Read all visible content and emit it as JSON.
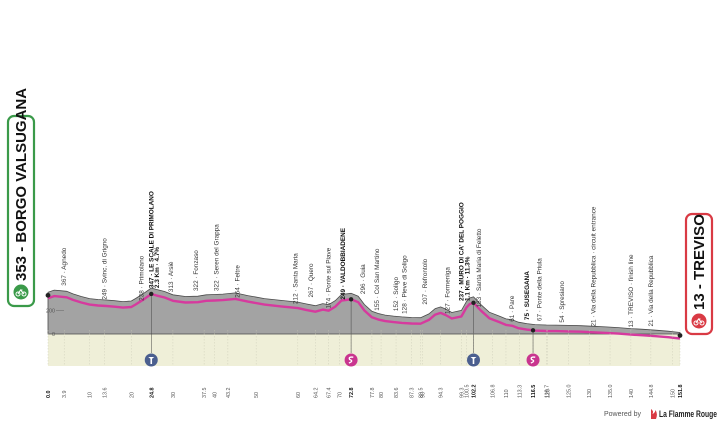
{
  "colors": {
    "profile_fill": "#a3a3a3",
    "profile_edge": "#4a4a4a",
    "route_line": "#d63a9e",
    "start_green": "#3a9a49",
    "finish_red": "#d93a44",
    "sprint_blue": "#4b5f8f",
    "kom_pink": "#c9358f",
    "base_fill": "#efefd8"
  },
  "start_label": "353 - BORGO VALSUGANA",
  "finish_label": "13 - TREVISO",
  "footer": {
    "powered_by": "Powered by",
    "brand": "La Flamme Rouge"
  },
  "chart_data": {
    "type": "area",
    "title": "",
    "xlabel": "",
    "ylabel": "",
    "xlim": [
      0,
      151.8
    ],
    "ylim": [
      0,
      500
    ],
    "altitude_ticks": [
      "200",
      "0"
    ],
    "profile": {
      "km": [
        0,
        1.5,
        3,
        4.5,
        6,
        8,
        10,
        12,
        14,
        16,
        18,
        20,
        21,
        23,
        24.8,
        26,
        28,
        30,
        33,
        36,
        38,
        40,
        42,
        45,
        48,
        52,
        56,
        60,
        62,
        64.2,
        66,
        67.4,
        69,
        70.5,
        72.8,
        74.5,
        76,
        77.8,
        79.5,
        81,
        83,
        85,
        87.3,
        89.5,
        91.5,
        93,
        94.3,
        95.5,
        97,
        99.3,
        100.5,
        101.3,
        102.2,
        104,
        106,
        108.5,
        110,
        111.5,
        113,
        115,
        117,
        119.7,
        122,
        125,
        128,
        131,
        134,
        137,
        140,
        143,
        146,
        149,
        150.5,
        151.8
      ],
      "alt": [
        353,
        372,
        367,
        362,
        340,
        318,
        300,
        292,
        288,
        282,
        275,
        280,
        300,
        345,
        390,
        378,
        360,
        332,
        318,
        320,
        332,
        335,
        338,
        348,
        325,
        300,
        285,
        270,
        255,
        240,
        258,
        248,
        283,
        335,
        345,
        320,
        250,
        192,
        172,
        160,
        152,
        145,
        140,
        138,
        170,
        215,
        230,
        212,
        182,
        200,
        275,
        305,
        315,
        248,
        185,
        150,
        128,
        120,
        100,
        88,
        80,
        76,
        75,
        73,
        70,
        65,
        60,
        54,
        46,
        40,
        32,
        24,
        18,
        13
      ]
    },
    "km_ticks": [
      "0.0",
      "3.9",
      "10",
      "13.6",
      "20",
      "24.8",
      "30",
      "37.5",
      "40",
      "43.2",
      "50",
      "60",
      "64.2",
      "67.4",
      "70",
      "72.8",
      "77.8",
      "80",
      "83.6",
      "87.3",
      "89.5",
      "90",
      "94.3",
      "99.3",
      "100.5",
      "102.2",
      "106.8",
      "110",
      "113.3",
      "116.5",
      "119.7",
      "120",
      "125.0",
      "130",
      "135.0",
      "140",
      "144.8",
      "150",
      "151.8"
    ],
    "km_ticks_bold": [
      "0.0",
      "24.8",
      "72.8",
      "102.2",
      "116.5",
      "151.8"
    ],
    "waypoints": [
      {
        "km": 3.9,
        "alt": 367,
        "label": "367 · Agnedo",
        "bold": false
      },
      {
        "km": 13.6,
        "alt": 249,
        "label": "249 · Svinc. di Grigno",
        "bold": false
      },
      {
        "km": 22.5,
        "alt": 238,
        "label": "238 · Primolano",
        "bold": false
      },
      {
        "km": 24.8,
        "alt": 347,
        "label": "347 · LE SCALE DI PRIMOLANO",
        "bold": true
      },
      {
        "km": 26.2,
        "alt": 347,
        "label": "2.3 Km · 4.7%",
        "bold": true
      },
      {
        "km": 29.5,
        "alt": 313,
        "label": "313 · Arsiè",
        "bold": false
      },
      {
        "km": 35.5,
        "alt": 322,
        "label": "322 · Fonzaso",
        "bold": false
      },
      {
        "km": 40.5,
        "alt": 322,
        "label": "322 · Seren del Grappa",
        "bold": false
      },
      {
        "km": 45.5,
        "alt": 264,
        "label": "264 · Feltre",
        "bold": false
      },
      {
        "km": 59.5,
        "alt": 212,
        "label": "212 · Santa Maria",
        "bold": false
      },
      {
        "km": 63.2,
        "alt": 267,
        "label": "267 · Quero",
        "bold": false
      },
      {
        "km": 67.4,
        "alt": 174,
        "label": "174 · Ponte sul Piave",
        "bold": false
      },
      {
        "km": 70.8,
        "alt": 249,
        "label": "249 · VALDOBBIADENE",
        "bold": true
      },
      {
        "km": 75.6,
        "alt": 296,
        "label": "296 · Guia",
        "bold": false
      },
      {
        "km": 79.0,
        "alt": 155,
        "label": "155 · Col San Martino",
        "bold": false
      },
      {
        "km": 83.6,
        "alt": 152,
        "label": "152 · Soligo",
        "bold": false
      },
      {
        "km": 85.6,
        "alt": 128,
        "label": "128 · Pieve di Soligo",
        "bold": false
      },
      {
        "km": 90.5,
        "alt": 207,
        "label": "207 · Refrontolo",
        "bold": false
      },
      {
        "km": 96.0,
        "alt": 127,
        "label": "127 · Formeniga",
        "bold": false
      },
      {
        "km": 99.3,
        "alt": 237,
        "label": "237 · MURO DI CA' DEL POGGIO",
        "bold": true
      },
      {
        "km": 100.8,
        "alt": 237,
        "label": "1.1 Km · 11.3%",
        "bold": true
      },
      {
        "km": 103.5,
        "alt": 183,
        "label": "183 · Santa Maria di Feletto",
        "bold": false
      },
      {
        "km": 111.5,
        "alt": 61,
        "label": "61 · Pare",
        "bold": false
      },
      {
        "km": 115.0,
        "alt": 75,
        "label": "75 · SUSEGANA",
        "bold": true
      },
      {
        "km": 118.0,
        "alt": 67,
        "label": "67 · Ponte della Priula",
        "bold": false
      },
      {
        "km": 123.5,
        "alt": 54,
        "label": "54 · Spresiano",
        "bold": false
      },
      {
        "km": 131.0,
        "alt": 21,
        "label": "21 · Via della Repubblica · circuit entrance",
        "bold": false
      },
      {
        "km": 140.0,
        "alt": 13,
        "label": "13 · TREVISO · finish line",
        "bold": false
      },
      {
        "km": 144.8,
        "alt": 21,
        "label": "21 · Via della Repubblica",
        "bold": false
      }
    ],
    "markers": [
      {
        "km": 24.8,
        "type": "sprint"
      },
      {
        "km": 72.8,
        "type": "kom"
      },
      {
        "km": 102.2,
        "type": "sprint"
      },
      {
        "km": 116.5,
        "type": "kom"
      }
    ]
  }
}
